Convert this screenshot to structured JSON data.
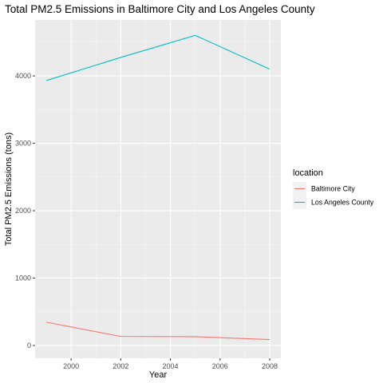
{
  "chart_data": {
    "type": "line",
    "title": "Total PM2.5 Emissions in Baltimore City and Los Angeles County",
    "xlabel": "Year",
    "ylabel": "Total PM2.5 Emissions (tons)",
    "x": [
      1999,
      2002,
      2005,
      2008
    ],
    "xlim": [
      1998.55,
      2008.45
    ],
    "ylim": [
      -190,
      4830
    ],
    "x_ticks": [
      2000,
      2002,
      2004,
      2006,
      2008
    ],
    "x_tick_labels": [
      "2000",
      "2002",
      "2004",
      "2006",
      "2008"
    ],
    "y_ticks": [
      0,
      1000,
      2000,
      3000,
      4000
    ],
    "y_tick_labels": [
      "0",
      "1000",
      "2000",
      "3000",
      "4000"
    ],
    "grid": true,
    "legend": {
      "title": "location",
      "placement": "right"
    },
    "series": [
      {
        "name": "Baltimore City",
        "color": "#F8766D",
        "values": [
          346,
          134,
          130,
          88
        ]
      },
      {
        "name": "Los Angeles County",
        "color": "#00BFC4",
        "values": [
          3931,
          4274,
          4601,
          4101
        ]
      }
    ]
  }
}
